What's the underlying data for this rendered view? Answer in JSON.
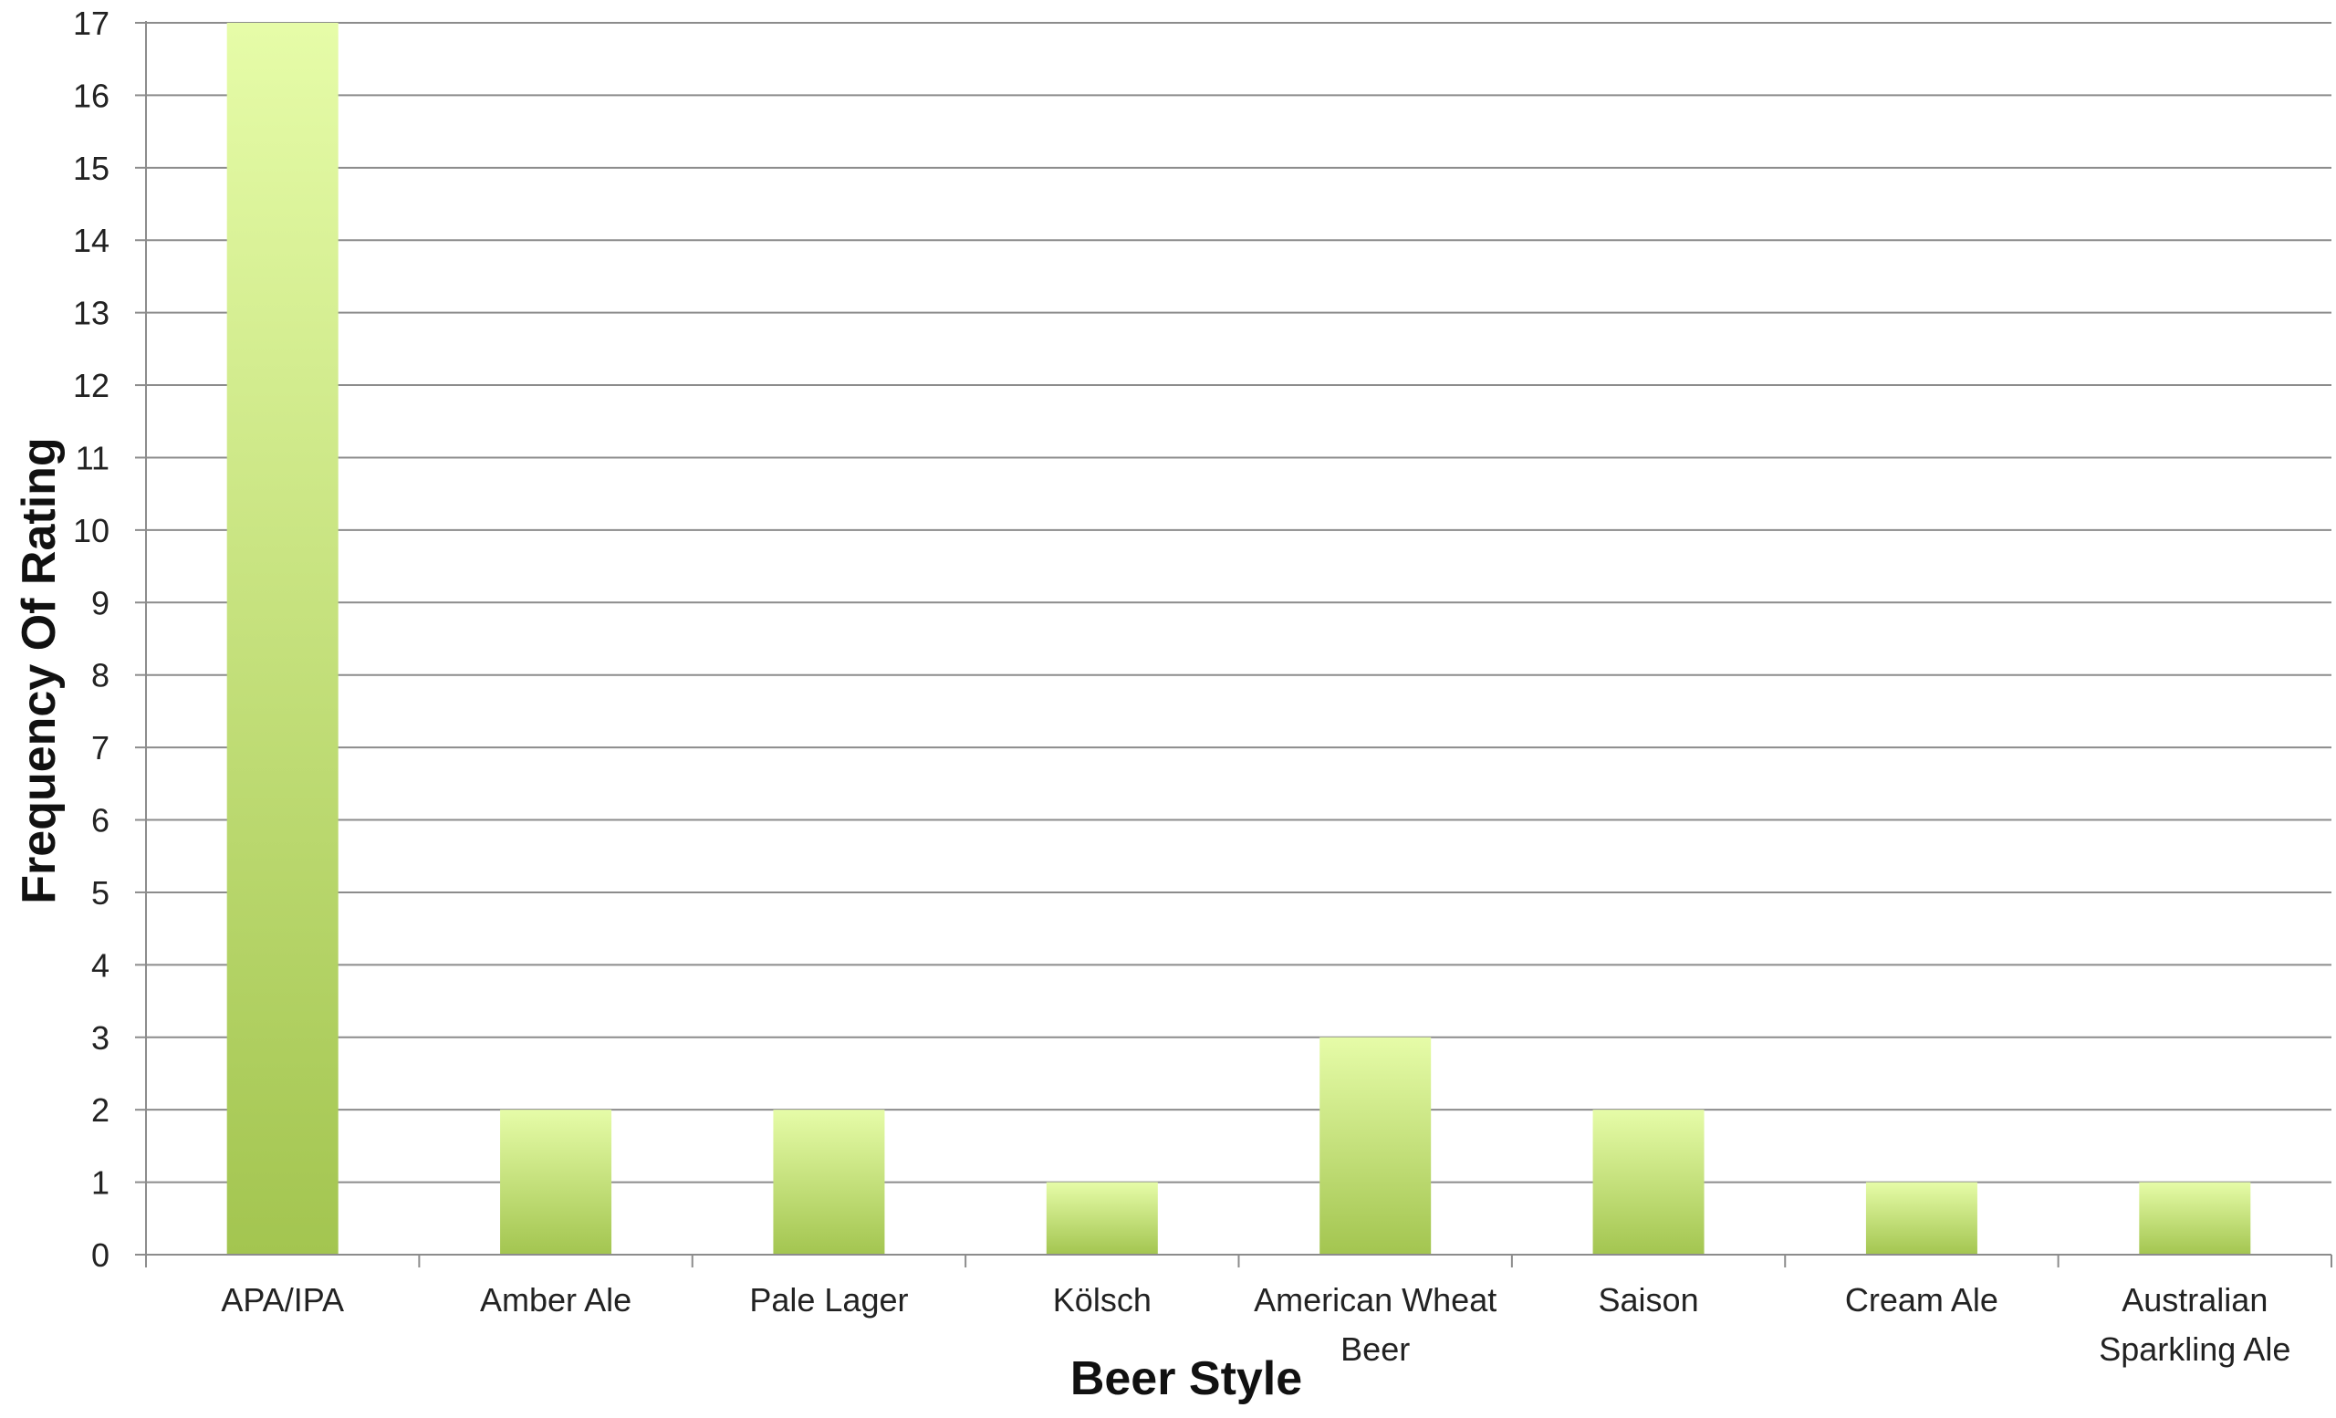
{
  "chart_data": {
    "type": "bar",
    "title": "",
    "xlabel": "Beer Style",
    "ylabel": "Frequency Of Rating",
    "categories": [
      [
        "APA/IPA"
      ],
      [
        "Amber Ale"
      ],
      [
        "Pale Lager"
      ],
      [
        "Kölsch"
      ],
      [
        "American Wheat",
        "Beer"
      ],
      [
        "Saison"
      ],
      [
        "Cream Ale"
      ],
      [
        "Australian",
        "Sparkling Ale"
      ]
    ],
    "values": [
      17,
      2,
      2,
      1,
      3,
      2,
      1,
      1
    ],
    "ylim": [
      0,
      17
    ],
    "yticks": [
      0,
      1,
      2,
      3,
      4,
      5,
      6,
      7,
      8,
      9,
      10,
      11,
      12,
      13,
      14,
      15,
      16,
      17
    ],
    "grid": true,
    "legend": "none",
    "colors": {
      "bar_top": "#e6fca8",
      "bar_bottom": "#a3c550",
      "gridline": "#8c8c8c",
      "axis": "#8c8c8c"
    }
  }
}
